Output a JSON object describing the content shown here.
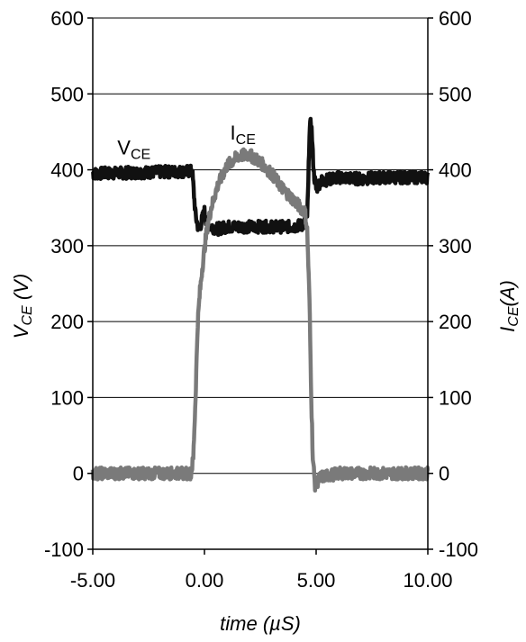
{
  "chart_data": {
    "type": "line",
    "xlabel": "time (µS)",
    "ylabel_left": {
      "main": "V",
      "sub": "CE",
      "unit": " (V)"
    },
    "ylabel_right": {
      "main": "I",
      "sub": "CE",
      "unit": "(A)"
    },
    "xlim": [
      -5,
      10
    ],
    "ylim": [
      -100,
      600
    ],
    "x_ticks": [
      -5,
      0,
      5,
      10
    ],
    "x_tick_labels": [
      "-5.00",
      "0.00",
      "5.00",
      "10.00"
    ],
    "y_ticks": [
      -100,
      0,
      100,
      200,
      300,
      400,
      500,
      600
    ],
    "y_tick_labels": [
      "-100",
      "0",
      "100",
      "200",
      "300",
      "400",
      "500",
      "600"
    ],
    "y2_tick_labels": [
      "-100",
      "0",
      "100",
      "200",
      "300",
      "400",
      "500",
      "600"
    ],
    "grid": "horizontal",
    "annotations": [
      {
        "main": "V",
        "sub": "CE",
        "x": -3.9,
        "y": 420
      },
      {
        "main": "I",
        "sub": "CE",
        "x": 1.15,
        "y": 440
      }
    ],
    "series": [
      {
        "color": "#111111",
        "x": [
          -5.0,
          -0.55,
          -0.5,
          -0.4,
          -0.25,
          -0.1,
          0.0,
          0.1,
          0.3,
          0.6,
          1.0,
          2.0,
          3.0,
          4.0,
          4.45,
          4.6,
          4.65,
          4.7,
          4.78,
          4.85,
          4.9,
          5.0,
          5.2,
          6.0,
          7.0,
          8.0,
          9.0,
          10.0
        ],
        "y": [
          395,
          398,
          380,
          340,
          320,
          335,
          345,
          330,
          325,
          322,
          325,
          325,
          325,
          325,
          328,
          340,
          380,
          450,
          465,
          420,
          395,
          375,
          385,
          390,
          388,
          390,
          390,
          390
        ]
      },
      {
        "color": "#7a7a7a",
        "x": [
          -5.0,
          -0.6,
          -0.5,
          -0.4,
          -0.3,
          -0.2,
          -0.1,
          0.0,
          0.1,
          0.3,
          0.6,
          1.0,
          1.5,
          2.0,
          2.5,
          3.0,
          3.5,
          4.0,
          4.3,
          4.5,
          4.6,
          4.7,
          4.75,
          4.8,
          4.85,
          4.95,
          5.2,
          6.0,
          7.0,
          8.0,
          9.0,
          10.0
        ],
        "y": [
          0,
          0,
          20,
          100,
          200,
          240,
          270,
          295,
          320,
          350,
          380,
          405,
          418,
          420,
          410,
          395,
          375,
          360,
          350,
          345,
          320,
          230,
          150,
          80,
          20,
          -15,
          -5,
          0,
          0,
          0,
          0,
          0
        ]
      }
    ]
  }
}
